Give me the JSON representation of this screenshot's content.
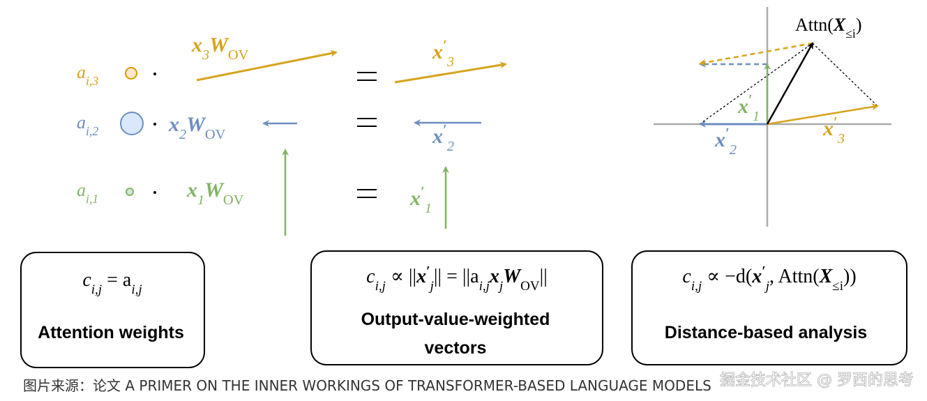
{
  "left": {
    "rows": [
      {
        "weight": [
          {
            "text": "a",
            "sub": "i,3"
          }
        ],
        "vector": [
          {
            "text": "x",
            "sub": "3",
            "bold": true
          },
          {
            "text": "W",
            "sub": "OV",
            "bold": true
          }
        ],
        "output": [
          {
            "text": "x",
            "sup": "′",
            "sub": "3",
            "bold": true
          }
        ]
      },
      {
        "weight": [
          {
            "text": "a",
            "sub": "i,2"
          }
        ],
        "vector": [
          {
            "text": "x",
            "sub": "2",
            "bold": true
          },
          {
            "text": "W",
            "sub": "OV",
            "bold": true
          }
        ],
        "output": [
          {
            "text": "x",
            "sup": "′",
            "sub": "2",
            "bold": true
          }
        ]
      },
      {
        "weight": [
          {
            "text": "a",
            "sub": "i,1"
          }
        ],
        "vector": [
          {
            "text": "x",
            "sub": "1",
            "bold": true
          },
          {
            "text": "W",
            "sub": "OV",
            "bold": true
          }
        ],
        "output": [
          {
            "text": "x",
            "sup": "′",
            "sub": "1",
            "bold": true
          }
        ]
      }
    ]
  },
  "right": {
    "attn": [
      {
        "text": "Attn("
      },
      {
        "text": "X",
        "sub": "≤i",
        "bold": true
      },
      {
        "text": ")"
      }
    ],
    "x1": [
      {
        "text": "x",
        "sup": "′",
        "sub": "1",
        "bold": true
      }
    ],
    "x2": [
      {
        "text": "x",
        "sup": "′",
        "sub": "2",
        "bold": true
      }
    ],
    "x3": [
      {
        "text": "x",
        "sup": "′",
        "sub": "3",
        "bold": true
      }
    ]
  },
  "boxes": [
    {
      "formula": [
        {
          "text": "c",
          "sub": "i,j"
        },
        {
          "text": " = a",
          "sub": "i,j"
        }
      ],
      "title": [
        "Attention weights"
      ]
    },
    {
      "formula": [
        {
          "text": "c",
          "sub": "i,j"
        },
        {
          "text": " ∝ ||"
        },
        {
          "text": "x",
          "sup": "′",
          "sub": "j",
          "bold": true
        },
        {
          "text": "|| = ||a",
          "sub": "i,j"
        },
        {
          "text": "x",
          "sub": "j",
          "bold": true
        },
        {
          "text": "W",
          "sub": "OV",
          "bold": true
        },
        {
          "text": "||"
        }
      ],
      "title": [
        "Output-value-weighted",
        "vectors"
      ]
    },
    {
      "formula": [
        {
          "text": "c",
          "sub": "i,j"
        },
        {
          "text": " ∝ −d("
        },
        {
          "text": "x",
          "sup": "′",
          "sub": "j",
          "bold": true
        },
        {
          "text": ", Attn("
        },
        {
          "text": "X",
          "sub": "≤i",
          "bold": true
        },
        {
          "text": "))"
        }
      ],
      "title": [
        "Distance-based analysis"
      ]
    }
  ],
  "caption": "图片来源：论文 A PRIMER ON THE INNER WORKINGS OF TRANSFORMER-BASED LANGUAGE MODELS",
  "watermark": "掘金技术社区 @ 罗西的思考"
}
